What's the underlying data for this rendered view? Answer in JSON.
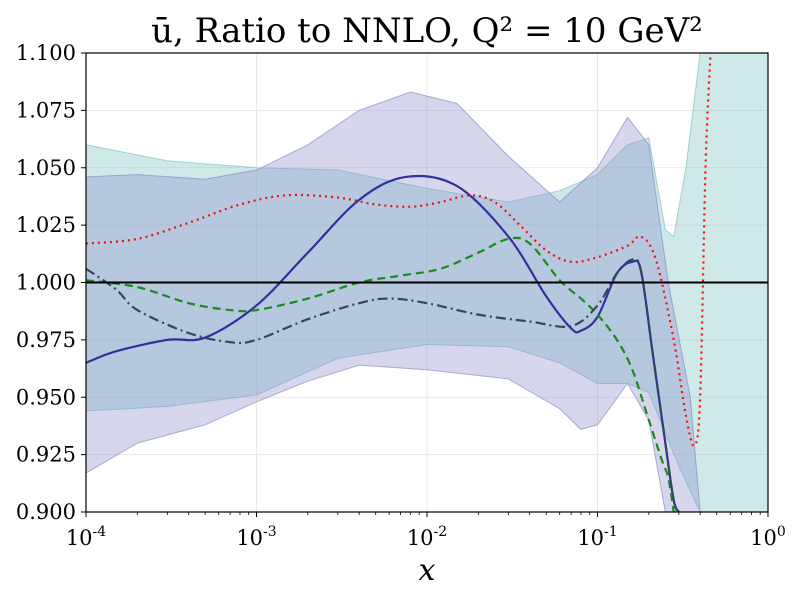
{
  "chart_data": {
    "type": "line",
    "title": "ū, Ratio to NNLO, Q² = 10 GeV²",
    "xlabel": "x",
    "ylabel": "",
    "xscale": "log",
    "xlim": [
      0.0001,
      1
    ],
    "ylim": [
      0.9,
      1.1
    ],
    "grid": true,
    "xticks": [
      {
        "value": 0.0001,
        "base": "10",
        "exp": "-4"
      },
      {
        "value": 0.001,
        "base": "10",
        "exp": "-3"
      },
      {
        "value": 0.01,
        "base": "10",
        "exp": "-2"
      },
      {
        "value": 0.1,
        "base": "10",
        "exp": "-1"
      },
      {
        "value": 1,
        "base": "10",
        "exp": "0"
      }
    ],
    "yticks": [
      {
        "value": 0.9,
        "label": "0.900"
      },
      {
        "value": 0.925,
        "label": "0.925"
      },
      {
        "value": 0.95,
        "label": "0.950"
      },
      {
        "value": 0.975,
        "label": "0.975"
      },
      {
        "value": 1.0,
        "label": "1.000"
      },
      {
        "value": 1.025,
        "label": "1.025"
      },
      {
        "value": 1.05,
        "label": "1.050"
      },
      {
        "value": 1.075,
        "label": "1.075"
      },
      {
        "value": 1.1,
        "label": "1.100"
      }
    ],
    "bands": [
      {
        "name": "teal-band",
        "color": "#7fc4c0",
        "opacity": 0.38,
        "upper": [
          [
            0.0001,
            1.06
          ],
          [
            0.0003,
            1.053
          ],
          [
            0.001,
            1.05
          ],
          [
            0.003,
            1.049
          ],
          [
            0.01,
            1.041
          ],
          [
            0.03,
            1.035
          ],
          [
            0.06,
            1.04
          ],
          [
            0.1,
            1.047
          ],
          [
            0.15,
            1.06
          ],
          [
            0.2,
            1.063
          ],
          [
            0.25,
            1.023
          ],
          [
            0.28,
            1.02
          ],
          [
            0.33,
            1.05
          ],
          [
            0.4,
            1.1
          ],
          [
            1,
            1.1
          ]
        ],
        "lower": [
          [
            0.0001,
            0.944
          ],
          [
            0.0003,
            0.946
          ],
          [
            0.001,
            0.951
          ],
          [
            0.003,
            0.967
          ],
          [
            0.01,
            0.973
          ],
          [
            0.03,
            0.972
          ],
          [
            0.06,
            0.965
          ],
          [
            0.1,
            0.956
          ],
          [
            0.15,
            0.956
          ],
          [
            0.2,
            0.952
          ],
          [
            0.3,
            0.92
          ],
          [
            0.4,
            0.9
          ],
          [
            1,
            0.9
          ]
        ]
      },
      {
        "name": "purple-band",
        "color": "#8c8ccc",
        "opacity": 0.36,
        "upper": [
          [
            0.0001,
            1.046
          ],
          [
            0.0002,
            1.047
          ],
          [
            0.0005,
            1.045
          ],
          [
            0.001,
            1.049
          ],
          [
            0.002,
            1.06
          ],
          [
            0.004,
            1.075
          ],
          [
            0.008,
            1.083
          ],
          [
            0.015,
            1.078
          ],
          [
            0.03,
            1.055
          ],
          [
            0.06,
            1.035
          ],
          [
            0.1,
            1.05
          ],
          [
            0.15,
            1.072
          ],
          [
            0.2,
            1.06
          ],
          [
            0.26,
            1.0
          ],
          [
            0.35,
            0.95
          ],
          [
            0.4,
            0.9
          ],
          [
            1,
            0.9
          ]
        ],
        "lower": [
          [
            0.0001,
            0.917
          ],
          [
            0.0002,
            0.93
          ],
          [
            0.0005,
            0.938
          ],
          [
            0.001,
            0.948
          ],
          [
            0.002,
            0.957
          ],
          [
            0.004,
            0.964
          ],
          [
            0.01,
            0.962
          ],
          [
            0.03,
            0.958
          ],
          [
            0.06,
            0.945
          ],
          [
            0.08,
            0.936
          ],
          [
            0.1,
            0.938
          ],
          [
            0.15,
            0.956
          ],
          [
            0.2,
            0.94
          ],
          [
            0.25,
            0.9
          ],
          [
            1,
            0.9
          ]
        ]
      }
    ],
    "series": [
      {
        "name": "blue-solid",
        "color": "#3030a0",
        "dash": "",
        "width": 2.2,
        "points": [
          [
            0.0001,
            0.965
          ],
          [
            0.00015,
            0.97
          ],
          [
            0.0003,
            0.975
          ],
          [
            0.0005,
            0.976
          ],
          [
            0.001,
            0.99
          ],
          [
            0.002,
            1.013
          ],
          [
            0.004,
            1.036
          ],
          [
            0.0075,
            1.046
          ],
          [
            0.015,
            1.042
          ],
          [
            0.03,
            1.02
          ],
          [
            0.05,
            0.994
          ],
          [
            0.07,
            0.98
          ],
          [
            0.08,
            0.979
          ],
          [
            0.1,
            0.985
          ],
          [
            0.13,
            1.004
          ],
          [
            0.16,
            1.009
          ],
          [
            0.18,
            1.005
          ],
          [
            0.21,
            0.97
          ],
          [
            0.25,
            0.93
          ],
          [
            0.28,
            0.905
          ],
          [
            0.3,
            0.9
          ]
        ]
      },
      {
        "name": "red-dotted",
        "color": "#ee1111",
        "dash": "2 4",
        "width": 2.2,
        "points": [
          [
            0.0001,
            1.017
          ],
          [
            0.0002,
            1.019
          ],
          [
            0.0004,
            1.026
          ],
          [
            0.0008,
            1.034
          ],
          [
            0.0015,
            1.038
          ],
          [
            0.003,
            1.037
          ],
          [
            0.005,
            1.034
          ],
          [
            0.008,
            1.033
          ],
          [
            0.012,
            1.035
          ],
          [
            0.018,
            1.038
          ],
          [
            0.025,
            1.035
          ],
          [
            0.035,
            1.025
          ],
          [
            0.05,
            1.014
          ],
          [
            0.07,
            1.009
          ],
          [
            0.1,
            1.011
          ],
          [
            0.15,
            1.016
          ],
          [
            0.18,
            1.02
          ],
          [
            0.22,
            1.01
          ],
          [
            0.28,
            0.975
          ],
          [
            0.33,
            0.942
          ],
          [
            0.37,
            0.929
          ],
          [
            0.4,
            0.95
          ],
          [
            0.43,
            1.05
          ],
          [
            0.46,
            1.1
          ]
        ]
      },
      {
        "name": "green-dashed",
        "color": "#1a8a1a",
        "dash": "8 5",
        "width": 2.2,
        "points": [
          [
            0.0001,
            1.001
          ],
          [
            0.0002,
            0.998
          ],
          [
            0.0004,
            0.991
          ],
          [
            0.0007,
            0.988
          ],
          [
            0.001,
            0.988
          ],
          [
            0.002,
            0.993
          ],
          [
            0.004,
            1.0
          ],
          [
            0.007,
            1.003
          ],
          [
            0.012,
            1.006
          ],
          [
            0.02,
            1.013
          ],
          [
            0.03,
            1.019
          ],
          [
            0.04,
            1.017
          ],
          [
            0.06,
            1.001
          ],
          [
            0.08,
            0.993
          ],
          [
            0.1,
            0.986
          ],
          [
            0.13,
            0.975
          ],
          [
            0.16,
            0.962
          ],
          [
            0.2,
            0.94
          ],
          [
            0.24,
            0.922
          ],
          [
            0.26,
            0.915
          ],
          [
            0.28,
            0.9
          ]
        ]
      },
      {
        "name": "darkslate-dashdot",
        "color": "#2f4a56",
        "dash": "10 4 2 4",
        "width": 2.2,
        "points": [
          [
            0.0001,
            1.006
          ],
          [
            0.00015,
            0.997
          ],
          [
            0.0002,
            0.988
          ],
          [
            0.0004,
            0.978
          ],
          [
            0.0007,
            0.974
          ],
          [
            0.001,
            0.975
          ],
          [
            0.002,
            0.984
          ],
          [
            0.004,
            0.991
          ],
          [
            0.006,
            0.993
          ],
          [
            0.01,
            0.991
          ],
          [
            0.02,
            0.986
          ],
          [
            0.04,
            0.983
          ],
          [
            0.07,
            0.981
          ],
          [
            0.1,
            0.99
          ],
          [
            0.13,
            1.004
          ],
          [
            0.16,
            1.01
          ],
          [
            0.18,
            1.005
          ],
          [
            0.21,
            0.97
          ],
          [
            0.25,
            0.93
          ],
          [
            0.28,
            0.905
          ],
          [
            0.3,
            0.9
          ]
        ]
      },
      {
        "name": "baseline-solid",
        "color": "#000000",
        "dash": "",
        "width": 2,
        "points": [
          [
            0.0001,
            1.0
          ],
          [
            1,
            1.0
          ]
        ]
      }
    ]
  }
}
